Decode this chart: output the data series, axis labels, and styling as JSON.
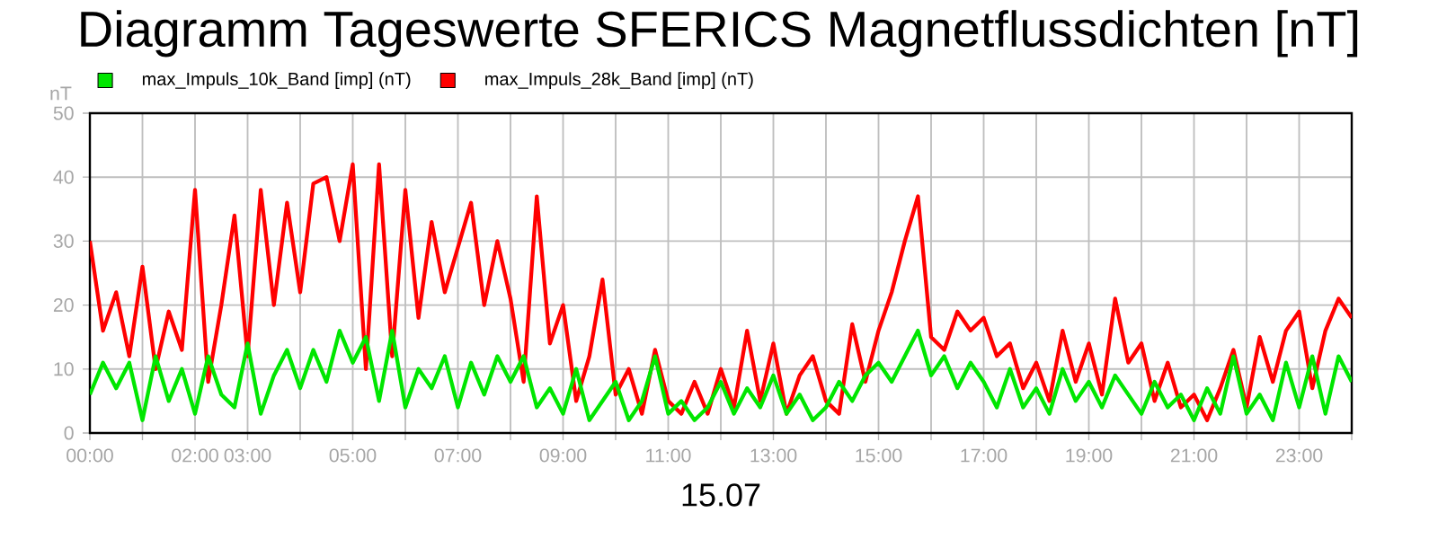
{
  "chart_data": {
    "type": "line",
    "title": "Diagramm Tageswerte SFERICS Magnetflussdichten [nT]",
    "xlabel": "15.07",
    "ylabel": "nT",
    "xlim": [
      0,
      24
    ],
    "ylim": [
      0,
      50
    ],
    "xticks": [
      {
        "value": 0,
        "label": "00:00"
      },
      {
        "value": 1,
        "label": null
      },
      {
        "value": 2,
        "label": "02:00"
      },
      {
        "value": 3,
        "label": "03:00"
      },
      {
        "value": 4,
        "label": null
      },
      {
        "value": 5,
        "label": "05:00"
      },
      {
        "value": 6,
        "label": null
      },
      {
        "value": 7,
        "label": "07:00"
      },
      {
        "value": 8,
        "label": null
      },
      {
        "value": 9,
        "label": "09:00"
      },
      {
        "value": 10,
        "label": null
      },
      {
        "value": 11,
        "label": "11:00"
      },
      {
        "value": 12,
        "label": null
      },
      {
        "value": 13,
        "label": "13:00"
      },
      {
        "value": 14,
        "label": null
      },
      {
        "value": 15,
        "label": "15:00"
      },
      {
        "value": 16,
        "label": null
      },
      {
        "value": 17,
        "label": "17:00"
      },
      {
        "value": 18,
        "label": null
      },
      {
        "value": 19,
        "label": "19:00"
      },
      {
        "value": 20,
        "label": null
      },
      {
        "value": 21,
        "label": "21:00"
      },
      {
        "value": 22,
        "label": null
      },
      {
        "value": 23,
        "label": "23:00"
      },
      {
        "value": 24,
        "label": null
      }
    ],
    "yticks": [
      0,
      10,
      20,
      30,
      40,
      50
    ],
    "grid": true,
    "legend": "top left",
    "line_style": "solid",
    "x": [
      0,
      0.25,
      0.5,
      0.75,
      1,
      1.25,
      1.5,
      1.75,
      2,
      2.25,
      2.5,
      2.75,
      3,
      3.25,
      3.5,
      3.75,
      4,
      4.25,
      4.5,
      4.75,
      5,
      5.25,
      5.5,
      5.75,
      6,
      6.25,
      6.5,
      6.75,
      7,
      7.25,
      7.5,
      7.75,
      8,
      8.25,
      8.5,
      8.75,
      9,
      9.25,
      9.5,
      9.75,
      10,
      10.25,
      10.5,
      10.75,
      11,
      11.25,
      11.5,
      11.75,
      12,
      12.25,
      12.5,
      12.75,
      13,
      13.25,
      13.5,
      13.75,
      14,
      14.25,
      14.5,
      14.75,
      15,
      15.25,
      15.5,
      15.75,
      16,
      16.25,
      16.5,
      16.75,
      17,
      17.25,
      17.5,
      17.75,
      18,
      18.25,
      18.5,
      18.75,
      19,
      19.25,
      19.5,
      19.75,
      20,
      20.25,
      20.5,
      20.75,
      21,
      21.25,
      21.5,
      21.75,
      22,
      22.25,
      22.5,
      22.75,
      23,
      23.25,
      23.5,
      23.75,
      24
    ],
    "series": [
      {
        "name": "max_Impuls_28k_Band [imp] (nT)",
        "color": "#ff0000",
        "values": [
          30,
          16,
          22,
          12,
          26,
          10,
          19,
          13,
          38,
          8,
          20,
          34,
          12,
          38,
          20,
          36,
          22,
          39,
          40,
          30,
          42,
          10,
          42,
          12,
          38,
          18,
          33,
          22,
          29,
          36,
          20,
          30,
          21,
          8,
          37,
          14,
          20,
          5,
          12,
          24,
          6,
          10,
          3,
          13,
          5,
          3,
          8,
          3,
          10,
          4,
          16,
          5,
          14,
          3,
          9,
          12,
          5,
          3,
          17,
          8,
          16,
          22,
          30,
          37,
          15,
          13,
          19,
          16,
          18,
          12,
          14,
          7,
          11,
          5,
          16,
          8,
          14,
          6,
          21,
          11,
          14,
          5,
          11,
          4,
          6,
          2,
          7,
          13,
          4,
          15,
          8,
          16,
          19,
          7,
          16,
          21,
          18
        ]
      },
      {
        "name": "max_Impuls_10k_Band [imp] (nT)",
        "color": "#00e600",
        "values": [
          6,
          11,
          7,
          11,
          2,
          12,
          5,
          10,
          3,
          12,
          6,
          4,
          14,
          3,
          9,
          13,
          7,
          13,
          8,
          16,
          11,
          15,
          5,
          16,
          4,
          10,
          7,
          12,
          4,
          11,
          6,
          12,
          8,
          12,
          4,
          7,
          3,
          10,
          2,
          5,
          8,
          2,
          5,
          12,
          3,
          5,
          2,
          4,
          8,
          3,
          7,
          4,
          9,
          3,
          6,
          2,
          4,
          8,
          5,
          9,
          11,
          8,
          12,
          16,
          9,
          12,
          7,
          11,
          8,
          4,
          10,
          4,
          7,
          3,
          10,
          5,
          8,
          4,
          9,
          6,
          3,
          8,
          4,
          6,
          2,
          7,
          3,
          12,
          3,
          6,
          2,
          11,
          4,
          12,
          3,
          12,
          8
        ]
      }
    ]
  }
}
